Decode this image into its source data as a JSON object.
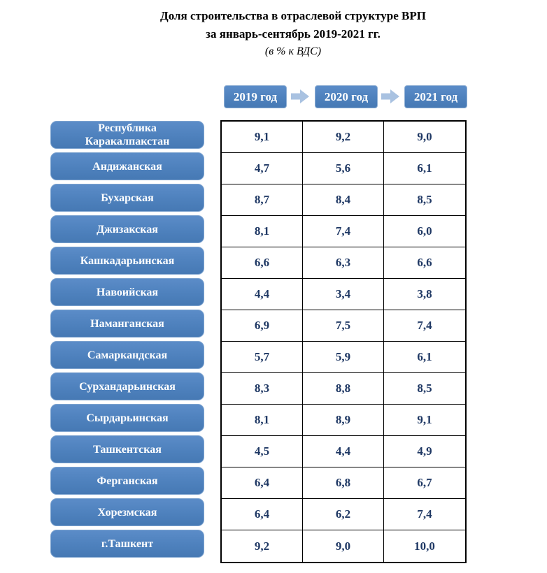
{
  "title": {
    "line1": "Доля строительства в отраслевой структуре ВРП",
    "line2": "за январь-сентябрь 2019-2021 гг.",
    "line3": "(в % к ВДС)"
  },
  "header": {
    "years": [
      "2019 год",
      "2020 год",
      "2021 год"
    ]
  },
  "chart_data": {
    "type": "table",
    "title": "Доля строительства в отраслевой структуре ВРП за январь-сентябрь 2019-2021 гг.",
    "unit": "в % к ВДС",
    "columns": [
      "2019 год",
      "2020 год",
      "2021 год"
    ],
    "rows": [
      {
        "region": "Республика Каракалпакстан",
        "values": [
          "9,1",
          "9,2",
          "9,0"
        ]
      },
      {
        "region": "Андижанская",
        "values": [
          "4,7",
          "5,6",
          "6,1"
        ]
      },
      {
        "region": "Бухарская",
        "values": [
          "8,7",
          "8,4",
          "8,5"
        ]
      },
      {
        "region": "Джизакская",
        "values": [
          "8,1",
          "7,4",
          "6,0"
        ]
      },
      {
        "region": "Кашкадарьинская",
        "values": [
          "6,6",
          "6,3",
          "6,6"
        ]
      },
      {
        "region": "Навоийская",
        "values": [
          "4,4",
          "3,4",
          "3,8"
        ]
      },
      {
        "region": "Наманганская",
        "values": [
          "6,9",
          "7,5",
          "7,4"
        ]
      },
      {
        "region": "Самаркандская",
        "values": [
          "5,7",
          "5,9",
          "6,1"
        ]
      },
      {
        "region": "Сурхандарьинская",
        "values": [
          "8,3",
          "8,8",
          "8,5"
        ]
      },
      {
        "region": "Сырдарьинская",
        "values": [
          "8,1",
          "8,9",
          "9,1"
        ]
      },
      {
        "region": "Ташкентская",
        "values": [
          "4,5",
          "4,4",
          "4,9"
        ]
      },
      {
        "region": "Ферганская",
        "values": [
          "6,4",
          "6,8",
          "6,7"
        ]
      },
      {
        "region": "Хорезмская",
        "values": [
          "6,4",
          "6,2",
          "7,4"
        ]
      },
      {
        "region": "г.Ташкент",
        "values": [
          "9,2",
          "9,0",
          "10,0"
        ]
      }
    ]
  },
  "colors": {
    "box_blue": "#4e81bd",
    "arrow_blue": "#a9c2e1",
    "value_navy": "#1f3864",
    "border_black": "#000000"
  }
}
